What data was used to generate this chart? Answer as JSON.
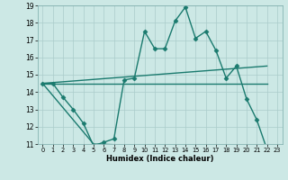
{
  "title": "",
  "xlabel": "Humidex (Indice chaleur)",
  "background_color": "#cce8e5",
  "grid_color": "#aaccca",
  "line_color": "#1a7a6e",
  "xlim": [
    -0.5,
    23.5
  ],
  "ylim": [
    11,
    19
  ],
  "xticks": [
    0,
    1,
    2,
    3,
    4,
    5,
    6,
    7,
    8,
    9,
    10,
    11,
    12,
    13,
    14,
    15,
    16,
    17,
    18,
    19,
    20,
    21,
    22,
    23
  ],
  "yticks": [
    11,
    12,
    13,
    14,
    15,
    16,
    17,
    18,
    19
  ],
  "series": [
    {
      "x": [
        0,
        1,
        2,
        3,
        4,
        5,
        6,
        7,
        8,
        9,
        10,
        11,
        12,
        13,
        14,
        15,
        16,
        17,
        18,
        19,
        20,
        21,
        22
      ],
      "y": [
        14.5,
        14.5,
        13.7,
        13.0,
        12.2,
        10.9,
        11.1,
        11.3,
        14.7,
        14.8,
        17.5,
        16.5,
        16.5,
        18.1,
        18.9,
        17.1,
        17.5,
        16.4,
        14.8,
        15.5,
        13.6,
        12.4,
        10.7
      ],
      "marker": "D",
      "markersize": 2.5,
      "linewidth": 1.0
    },
    {
      "x": [
        0,
        22
      ],
      "y": [
        14.5,
        15.5
      ],
      "marker": null,
      "markersize": 0,
      "linewidth": 1.0
    },
    {
      "x": [
        0,
        22
      ],
      "y": [
        14.5,
        14.5
      ],
      "marker": null,
      "markersize": 0,
      "linewidth": 1.0
    },
    {
      "x": [
        0,
        5,
        22
      ],
      "y": [
        14.5,
        11.0,
        10.7
      ],
      "marker": null,
      "markersize": 0,
      "linewidth": 1.0
    }
  ]
}
